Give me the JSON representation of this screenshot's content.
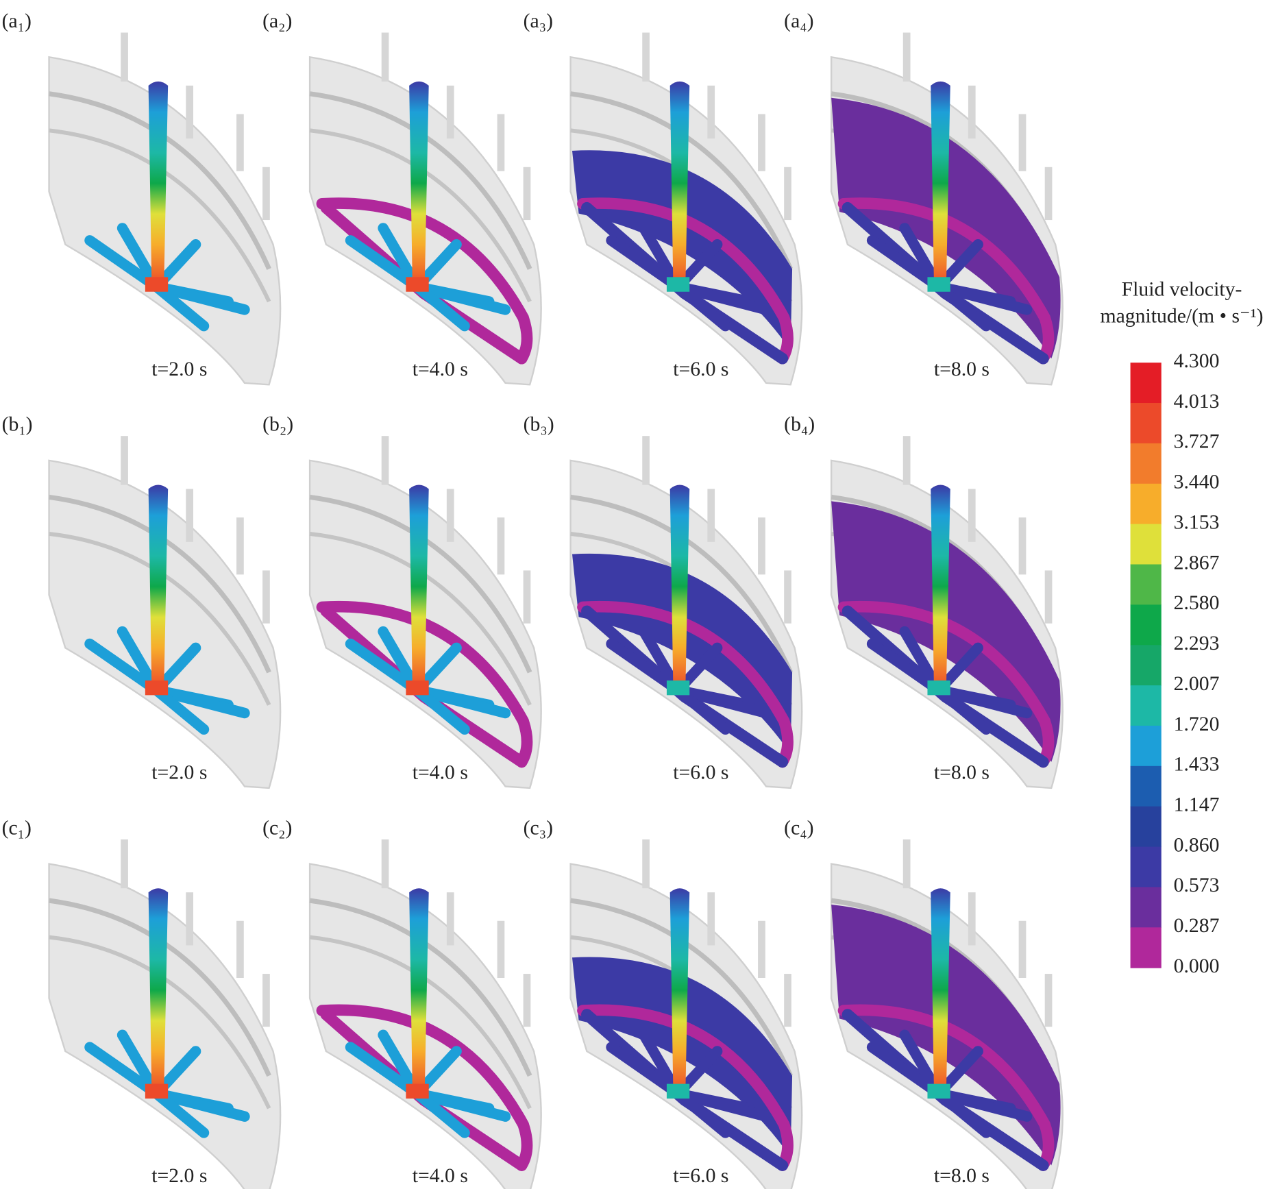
{
  "panels": [
    {
      "label": "(a₁)",
      "time": "t=2.0 s"
    },
    {
      "label": "(a₂)",
      "time": "t=4.0 s"
    },
    {
      "label": "(a₃)",
      "time": "t=6.0 s"
    },
    {
      "label": "(a₄)",
      "time": "t=8.0 s"
    },
    {
      "label": "(b₁)",
      "time": "t=2.0 s"
    },
    {
      "label": "(b₂)",
      "time": "t=4.0 s"
    },
    {
      "label": "(b₃)",
      "time": "t=6.0 s"
    },
    {
      "label": "(b₄)",
      "time": "t=8.0 s"
    },
    {
      "label": "(c₁)",
      "time": "t=2.0 s"
    },
    {
      "label": "(c₂)",
      "time": "t=4.0 s"
    },
    {
      "label": "(c₃)",
      "time": "t=6.0 s"
    },
    {
      "label": "(c₄)",
      "time": "t=8.0 s"
    }
  ],
  "legend": {
    "title": [
      "Fluid velocity-",
      "magnitude/(m • s⁻¹)"
    ],
    "ticks": [
      "4.300",
      "4.013",
      "3.727",
      "3.440",
      "3.153",
      "2.867",
      "2.580",
      "2.293",
      "2.007",
      "1.720",
      "1.433",
      "1.147",
      "0.860",
      "0.573",
      "0.287",
      "0.000"
    ],
    "colors": [
      "#e41d26",
      "#ec4a2a",
      "#f27c2c",
      "#f7ad2b",
      "#dfe03a",
      "#4fb748",
      "#0ea84a",
      "#16a768",
      "#1db8a6",
      "#1d9fd8",
      "#1c5db0",
      "#27419d",
      "#3c3aa5",
      "#6a2e9d",
      "#b0289b"
    ]
  }
}
